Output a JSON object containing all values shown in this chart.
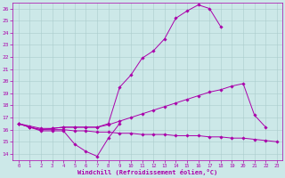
{
  "xlabel": "Windchill (Refroidissement éolien,°C)",
  "xlim": [
    -0.5,
    23.5
  ],
  "ylim": [
    13.5,
    26.5
  ],
  "xticks": [
    0,
    1,
    2,
    3,
    4,
    5,
    6,
    7,
    8,
    9,
    10,
    11,
    12,
    13,
    14,
    15,
    16,
    17,
    18,
    19,
    20,
    21,
    22,
    23
  ],
  "yticks": [
    14,
    15,
    16,
    17,
    18,
    19,
    20,
    21,
    22,
    23,
    24,
    25,
    26
  ],
  "bg_color": "#cce8e8",
  "line_color": "#aa00aa",
  "grid_color": "#aacccc",
  "series": [
    {
      "x": [
        0,
        1,
        2,
        3,
        4,
        5,
        6,
        7,
        8,
        9,
        10,
        11,
        12,
        13,
        14,
        15,
        16,
        17,
        18,
        19,
        20,
        21,
        22,
        23
      ],
      "y": [
        16.5,
        16.2,
        15.9,
        15.9,
        15.9,
        14.8,
        14.2,
        13.8,
        15.3,
        16.5,
        null,
        null,
        null,
        null,
        null,
        null,
        null,
        null,
        null,
        null,
        null,
        null,
        null,
        null
      ]
    },
    {
      "x": [
        0,
        1,
        2,
        3,
        4,
        5,
        6,
        7,
        8,
        9,
        10,
        11,
        12,
        13,
        14,
        15,
        16,
        17,
        18,
        19,
        20,
        21,
        22,
        23
      ],
      "y": [
        16.5,
        16.2,
        16.0,
        16.0,
        16.0,
        15.9,
        15.9,
        15.8,
        15.8,
        15.7,
        15.7,
        15.6,
        15.6,
        15.6,
        15.5,
        15.5,
        15.5,
        15.4,
        15.4,
        15.3,
        15.3,
        15.2,
        15.1,
        15.0
      ]
    },
    {
      "x": [
        0,
        1,
        2,
        3,
        4,
        5,
        6,
        7,
        8,
        9,
        10,
        11,
        12,
        13,
        14,
        15,
        16,
        17,
        18,
        19,
        20,
        21,
        22,
        23
      ],
      "y": [
        16.5,
        16.3,
        16.1,
        16.1,
        16.2,
        16.2,
        16.2,
        16.2,
        16.4,
        16.7,
        17.0,
        17.3,
        17.6,
        17.9,
        18.2,
        18.5,
        18.8,
        19.1,
        19.3,
        19.6,
        19.8,
        17.2,
        16.2,
        null
      ]
    },
    {
      "x": [
        0,
        1,
        2,
        3,
        4,
        5,
        6,
        7,
        8,
        9,
        10,
        11,
        12,
        13,
        14,
        15,
        16,
        17,
        18,
        19,
        20,
        21,
        22,
        23
      ],
      "y": [
        16.5,
        16.2,
        16.0,
        16.1,
        16.2,
        16.2,
        16.2,
        16.2,
        16.5,
        19.5,
        20.5,
        21.9,
        22.5,
        23.5,
        25.2,
        25.8,
        26.3,
        26.0,
        24.5,
        null,
        null,
        null,
        null,
        null
      ]
    }
  ]
}
